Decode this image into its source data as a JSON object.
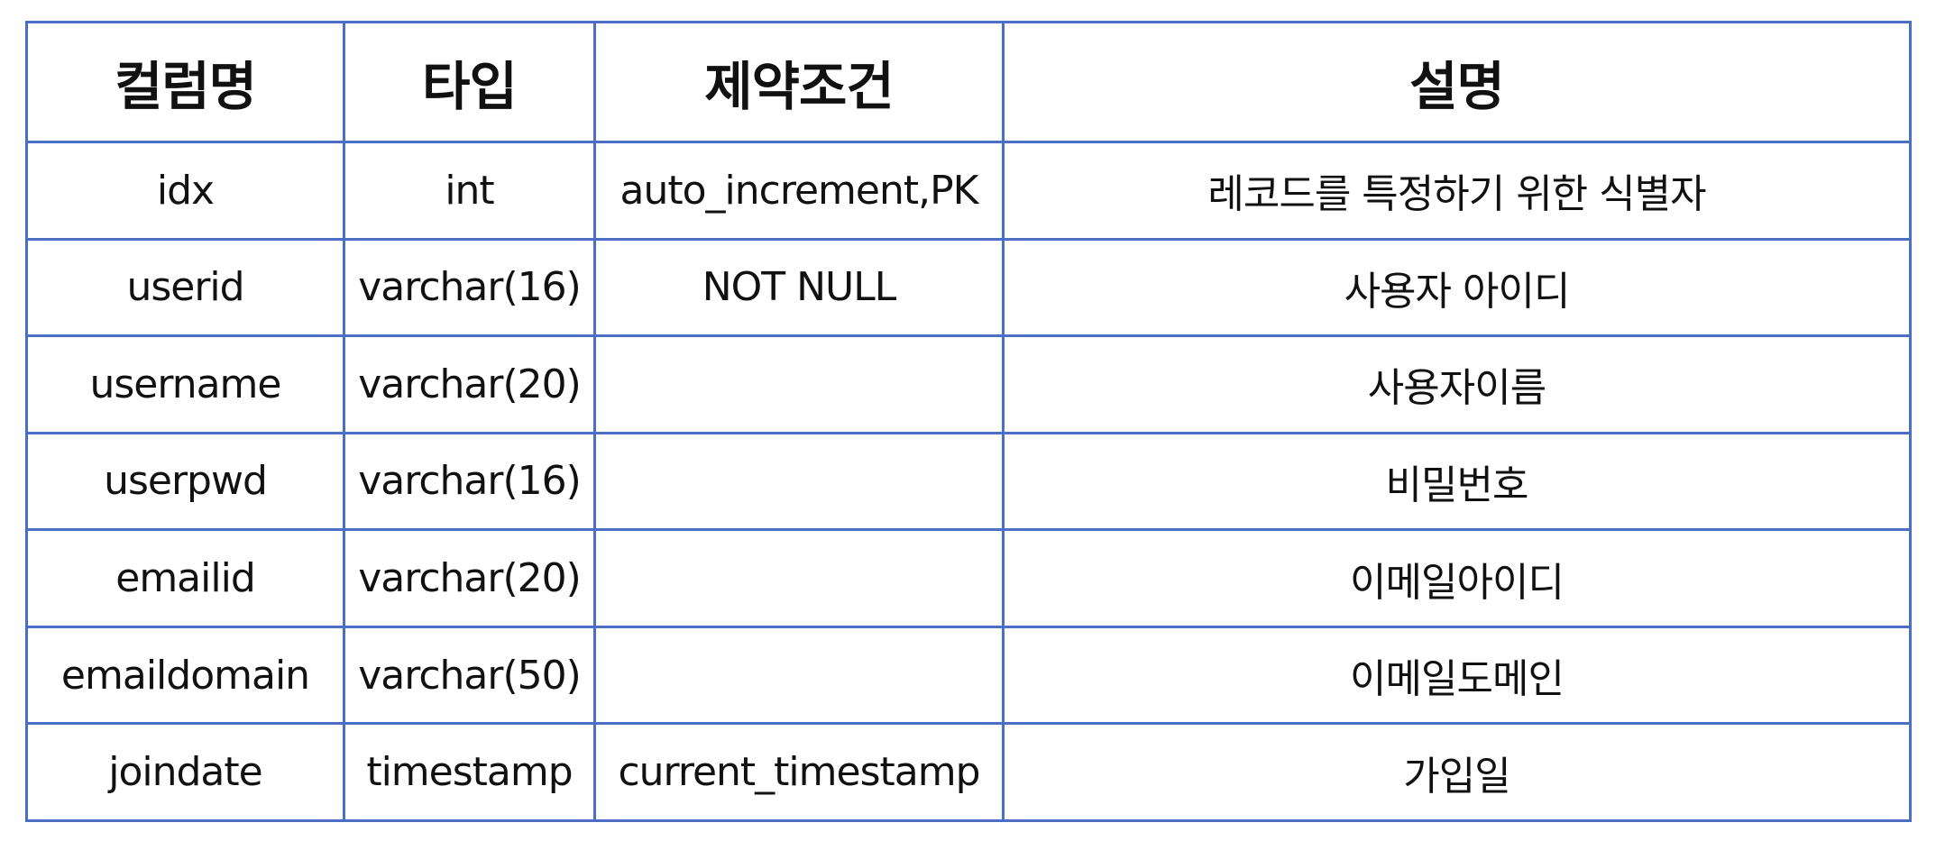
{
  "table": {
    "headers": [
      "컬럼명",
      "타입",
      "제약조건",
      "설명"
    ],
    "rows": [
      [
        "idx",
        "int",
        "auto_increment,PK",
        "레코드를 특정하기 위한 식별자"
      ],
      [
        "userid",
        "varchar(16)",
        "NOT NULL",
        "사용자 아이디"
      ],
      [
        "username",
        "varchar(20)",
        "",
        "사용자이름"
      ],
      [
        "userpwd",
        "varchar(16)",
        "",
        "비밀번호"
      ],
      [
        "emailid",
        "varchar(20)",
        "",
        "이메일아이디"
      ],
      [
        "emaildomain",
        "varchar(50)",
        "",
        "이메일도메인"
      ],
      [
        "joindate",
        "timestamp",
        "current_timestamp",
        "가입일"
      ]
    ]
  },
  "colors": {
    "border": "#4a6fc4",
    "text": "#111111",
    "background": "#ffffff"
  }
}
